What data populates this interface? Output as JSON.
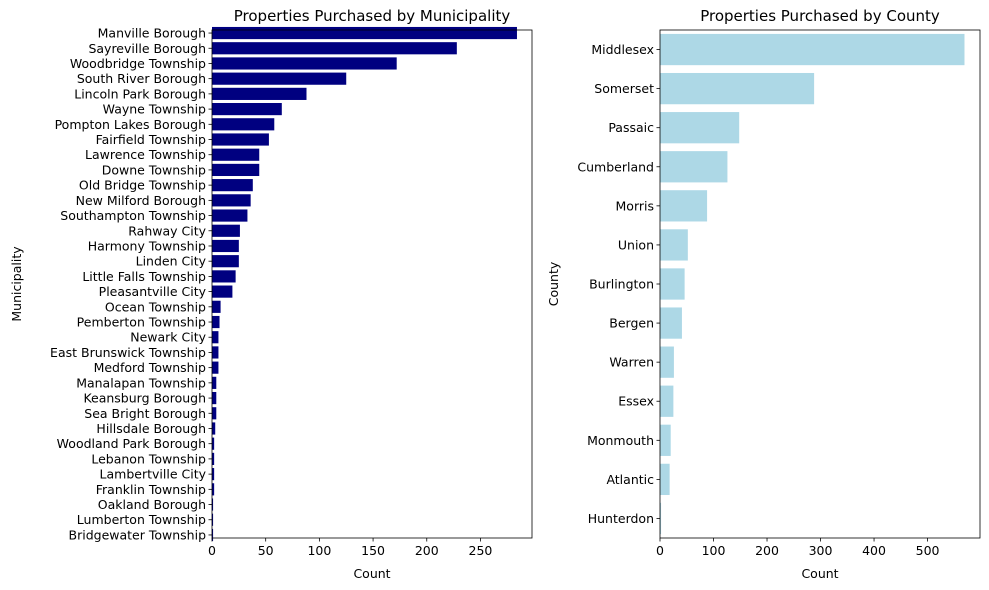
{
  "chart_data": [
    {
      "type": "bar",
      "orientation": "horizontal",
      "title": "Properties Purchased by Municipality",
      "xlabel": "Count",
      "ylabel": "Municipality",
      "xlim": [
        0,
        298
      ],
      "xticks": [
        0,
        50,
        100,
        150,
        200,
        250
      ],
      "grid": false,
      "color": "#000080",
      "categories": [
        "Manville Borough",
        "Sayreville Borough",
        "Woodbridge Township",
        "South River Borough",
        "Lincoln Park Borough",
        "Wayne Township",
        "Pompton Lakes Borough",
        "Fairfield Township",
        "Lawrence Township",
        "Downe Township",
        "Old Bridge Township",
        "New Milford Borough",
        "Southampton Township",
        "Rahway City",
        "Harmony Township",
        "Linden City",
        "Little Falls Township",
        "Pleasantville City",
        "Ocean Township",
        "Pemberton Township",
        "Newark City",
        "East Brunswick Township",
        "Medford Township",
        "Manalapan Township",
        "Keansburg Borough",
        "Sea Bright Borough",
        "Hillsdale Borough",
        "Woodland Park Borough",
        "Lebanon Township",
        "Lambertville City",
        "Franklin Township",
        "Oakland Borough",
        "Lumberton Township",
        "Bridgewater Township"
      ],
      "values": [
        284,
        228,
        172,
        125,
        88,
        65,
        58,
        53,
        44,
        44,
        38,
        36,
        33,
        26,
        25,
        25,
        22,
        19,
        8,
        7,
        6,
        6,
        6,
        4,
        4,
        4,
        3,
        2,
        2,
        2,
        2,
        1,
        1,
        1
      ]
    },
    {
      "type": "bar",
      "orientation": "horizontal",
      "title": "Properties Purchased by County",
      "xlabel": "Count",
      "ylabel": "County",
      "xlim": [
        0,
        598
      ],
      "xticks": [
        0,
        100,
        200,
        300,
        400,
        500
      ],
      "grid": false,
      "color": "#add8e6",
      "categories": [
        "Middlesex",
        "Somerset",
        "Passaic",
        "Cumberland",
        "Morris",
        "Union",
        "Burlington",
        "Bergen",
        "Warren",
        "Essex",
        "Monmouth",
        "Atlantic",
        "Hunterdon"
      ],
      "values": [
        569,
        288,
        148,
        126,
        88,
        52,
        46,
        41,
        26,
        25,
        20,
        18,
        2
      ]
    }
  ]
}
